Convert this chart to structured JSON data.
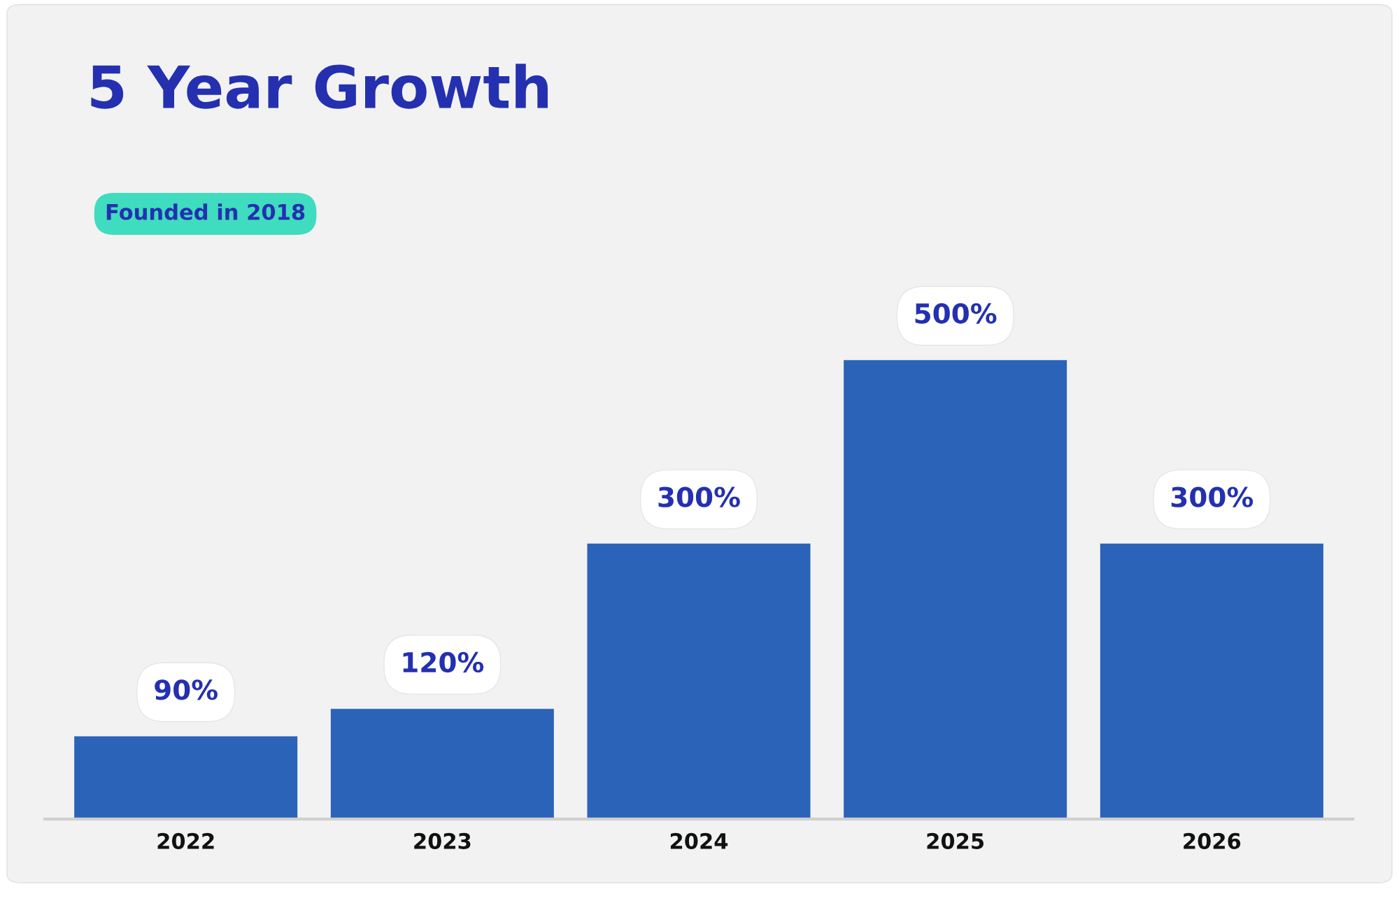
{
  "chart_data": {
    "type": "bar",
    "title": "5 Year Growth",
    "annotations": [
      "Founded in 2018"
    ],
    "categories": [
      "2022",
      "2023",
      "2024",
      "2025",
      "2026"
    ],
    "values": [
      90,
      120,
      300,
      500,
      300
    ],
    "value_labels": [
      "90%",
      "120%",
      "300%",
      "500%",
      "300%"
    ],
    "color": "#2a63b8",
    "grid": false,
    "legend": false
  }
}
